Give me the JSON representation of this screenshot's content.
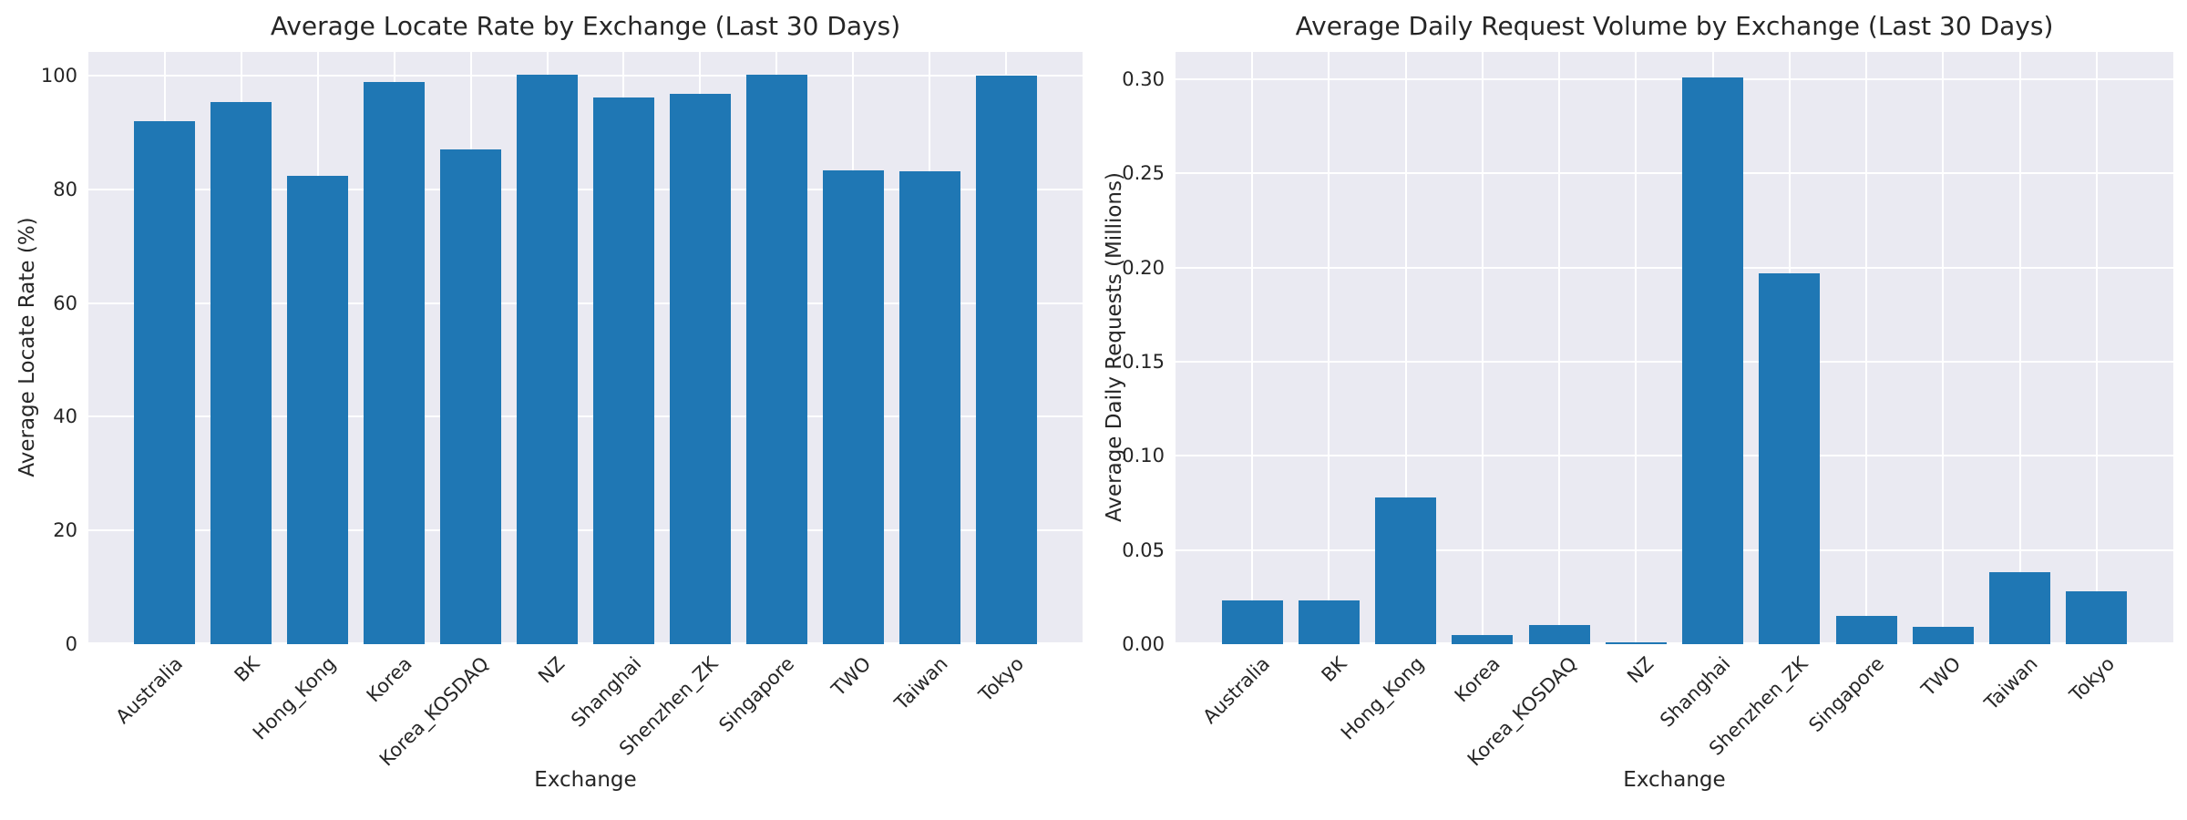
{
  "figure": {
    "background": "#ffffff",
    "plot_background": "#eaeaf2",
    "grid_color": "#ffffff",
    "bar_color": "#1f77b4",
    "text_color": "#262626"
  },
  "chart_data": [
    {
      "type": "bar",
      "title": "Average Locate Rate by Exchange (Last 30 Days)",
      "xlabel": "Exchange",
      "ylabel": "Average Locate Rate (%)",
      "categories": [
        "Australia",
        "BK",
        "Hong_Kong",
        "Korea",
        "Korea_KOSDAQ",
        "NZ",
        "Shanghai",
        "Shenzhen_ZK",
        "Singapore",
        "TWO",
        "Taiwan",
        "Tokyo"
      ],
      "values": [
        92.0,
        95.4,
        82.4,
        98.9,
        87.1,
        100.2,
        96.2,
        96.9,
        100.2,
        83.4,
        83.2,
        100.1
      ],
      "yticks": [
        0,
        20,
        40,
        60,
        80,
        100
      ],
      "ytick_labels": [
        "0",
        "20",
        "40",
        "60",
        "80",
        "100"
      ],
      "ylim": [
        0,
        104.2
      ],
      "grid": "both",
      "legend": "none",
      "bar_color": "#1f77b4"
    },
    {
      "type": "bar",
      "title": "Average Daily Request Volume by Exchange (Last 30 Days)",
      "xlabel": "Exchange",
      "ylabel": "Average Daily Requests (Millions)",
      "categories": [
        "Australia",
        "BK",
        "Hong_Kong",
        "Korea",
        "Korea_KOSDAQ",
        "NZ",
        "Shanghai",
        "Shenzhen_ZK",
        "Singapore",
        "TWO",
        "Taiwan",
        "Tokyo"
      ],
      "values": [
        0.023,
        0.023,
        0.078,
        0.005,
        0.01,
        0.001,
        0.301,
        0.197,
        0.015,
        0.009,
        0.038,
        0.028
      ],
      "yticks": [
        0.0,
        0.05,
        0.1,
        0.15,
        0.2,
        0.25,
        0.3
      ],
      "ytick_labels": [
        "0.00",
        "0.05",
        "0.10",
        "0.15",
        "0.20",
        "0.25",
        "0.30"
      ],
      "ylim": [
        0,
        0.3145
      ],
      "grid": "both",
      "legend": "none",
      "bar_color": "#1f77b4"
    }
  ]
}
